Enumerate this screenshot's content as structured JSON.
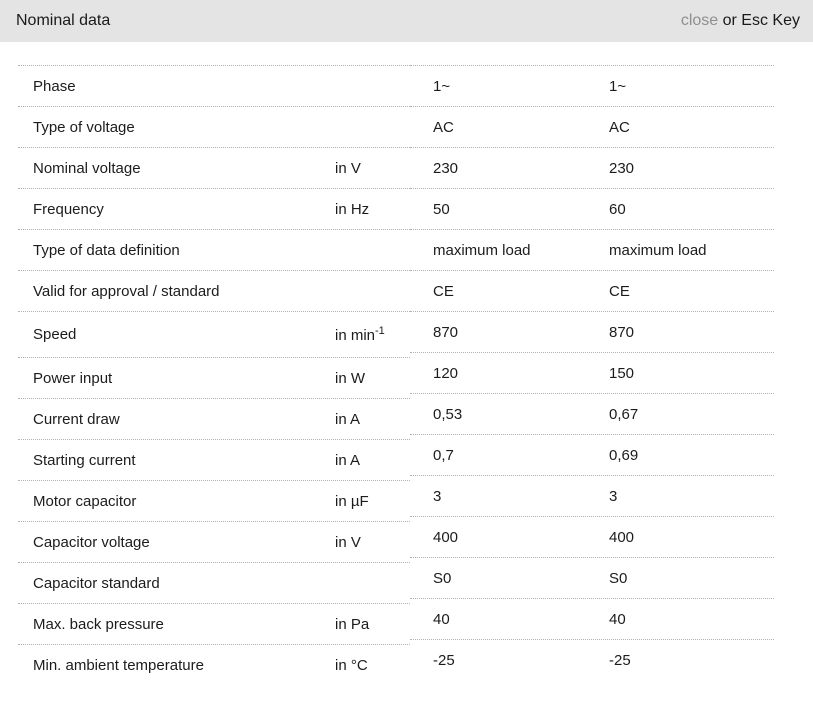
{
  "header": {
    "title": "Nominal data",
    "close_label": "close",
    "close_suffix": " or Esc Key"
  },
  "table": {
    "rows": [
      {
        "label": "Phase",
        "unit": "",
        "unit_sup": "",
        "v1": "1~",
        "v2": "1~"
      },
      {
        "label": "Type of voltage",
        "unit": "",
        "unit_sup": "",
        "v1": "AC",
        "v2": "AC"
      },
      {
        "label": "Nominal voltage",
        "unit": "in V",
        "unit_sup": "",
        "v1": "230",
        "v2": "230"
      },
      {
        "label": "Frequency",
        "unit": "in Hz",
        "unit_sup": "",
        "v1": "50",
        "v2": "60"
      },
      {
        "label": "Type of data definition",
        "unit": "",
        "unit_sup": "",
        "v1": "maximum load",
        "v2": "maximum load"
      },
      {
        "label": "Valid for approval / standard",
        "unit": "",
        "unit_sup": "",
        "v1": "CE",
        "v2": "CE"
      },
      {
        "label": "Speed",
        "unit": "in min",
        "unit_sup": "-1",
        "v1": "870",
        "v2": "870"
      },
      {
        "label": "Power input",
        "unit": "in W",
        "unit_sup": "",
        "v1": "120",
        "v2": "150"
      },
      {
        "label": "Current draw",
        "unit": "in A",
        "unit_sup": "",
        "v1": "0,53",
        "v2": "0,67"
      },
      {
        "label": "Starting current",
        "unit": "in A",
        "unit_sup": "",
        "v1": "0,7",
        "v2": "0,69"
      },
      {
        "label": "Motor capacitor",
        "unit": "in µF",
        "unit_sup": "",
        "v1": "3",
        "v2": "3"
      },
      {
        "label": "Capacitor voltage",
        "unit": "in V",
        "unit_sup": "",
        "v1": "400",
        "v2": "400"
      },
      {
        "label": "Capacitor standard",
        "unit": "",
        "unit_sup": "",
        "v1": "S0",
        "v2": "S0"
      },
      {
        "label": "Max. back pressure",
        "unit": "in Pa",
        "unit_sup": "",
        "v1": "40",
        "v2": "40"
      },
      {
        "label": "Min. ambient temperature",
        "unit": "in °C",
        "unit_sup": "",
        "v1": "-25",
        "v2": "-25"
      }
    ]
  },
  "colors": {
    "header_bg": "#e4e4e4",
    "text": "#1c1c1c",
    "muted": "#8f8f8f",
    "divider": "#b2b2b2"
  }
}
